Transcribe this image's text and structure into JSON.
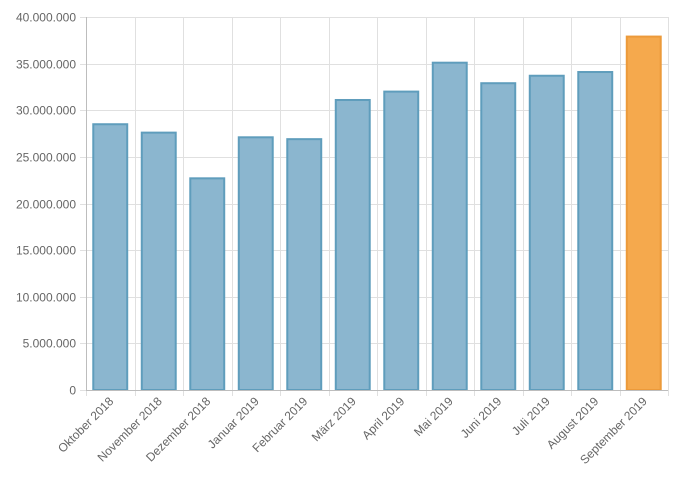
{
  "chart_data": {
    "type": "bar",
    "title": "",
    "xlabel": "",
    "ylabel": "",
    "categories": [
      "Oktober 2018",
      "November 2018",
      "Dezember 2018",
      "Januar 2019",
      "Februar 2019",
      "März 2019",
      "April 2019",
      "Mai 2019",
      "Juni 2019",
      "Juli 2019",
      "August 2019",
      "September 2019"
    ],
    "values": [
      28500000,
      27600000,
      22700000,
      27100000,
      26900000,
      31100000,
      32000000,
      35100000,
      32900000,
      33700000,
      34100000,
      37900000
    ],
    "ylim": [
      0,
      40000000
    ],
    "yticks": [
      0,
      5000000,
      10000000,
      15000000,
      20000000,
      25000000,
      30000000,
      35000000,
      40000000
    ],
    "ytick_labels": [
      "0",
      "5.000.000",
      "10.000.000",
      "15.000.000",
      "20.000.000",
      "25.000.000",
      "30.000.000",
      "35.000.000",
      "40.000.000"
    ],
    "grid": true,
    "bar_color": "#8bb6cf",
    "bar_border": "#5f9dbc",
    "highlight_index": 11,
    "highlight_color": "#f5a94d",
    "highlight_border": "#ec9a3a"
  }
}
